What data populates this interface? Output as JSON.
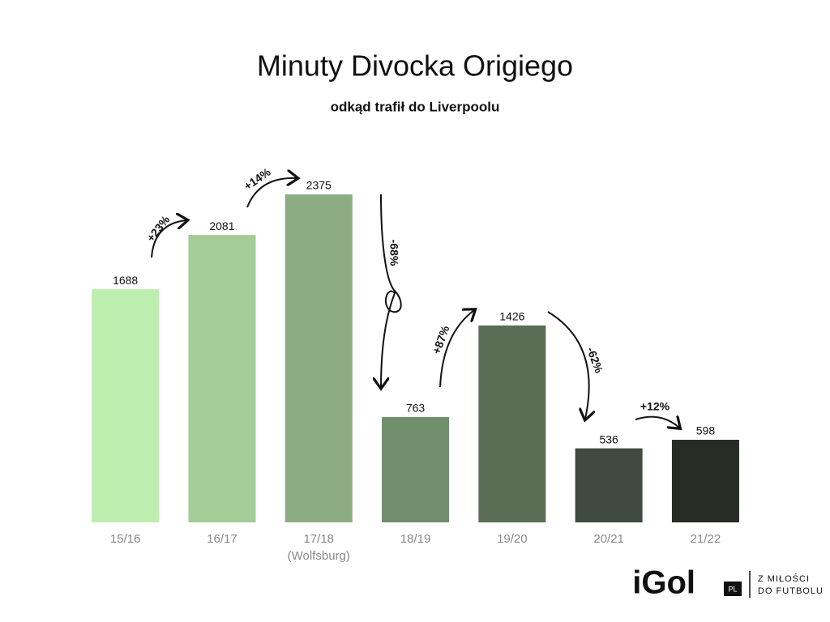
{
  "chart_data": {
    "type": "bar",
    "title": "Minuty Divocka Origiego",
    "subtitle": "odkąd trafił do Liverpoolu",
    "categories": [
      "15/16",
      "16/17",
      "17/18\n(Wolfsburg)",
      "18/19",
      "19/20",
      "20/21",
      "21/22"
    ],
    "values": [
      1688,
      2081,
      2375,
      763,
      1426,
      536,
      598
    ],
    "colors": [
      "#bdeeb0",
      "#a3cc96",
      "#8cac84",
      "#718e6c",
      "#5a6e56",
      "#3f4b3f",
      "#272c25"
    ],
    "changes": [
      "+23%",
      "+14%",
      "-68%",
      "+87%",
      "-62%",
      "+12%"
    ]
  },
  "logo": {
    "name": "iGol",
    "badge": "PL",
    "tagline": "Z MIŁOŚCI\nDO FUTBOLU"
  }
}
